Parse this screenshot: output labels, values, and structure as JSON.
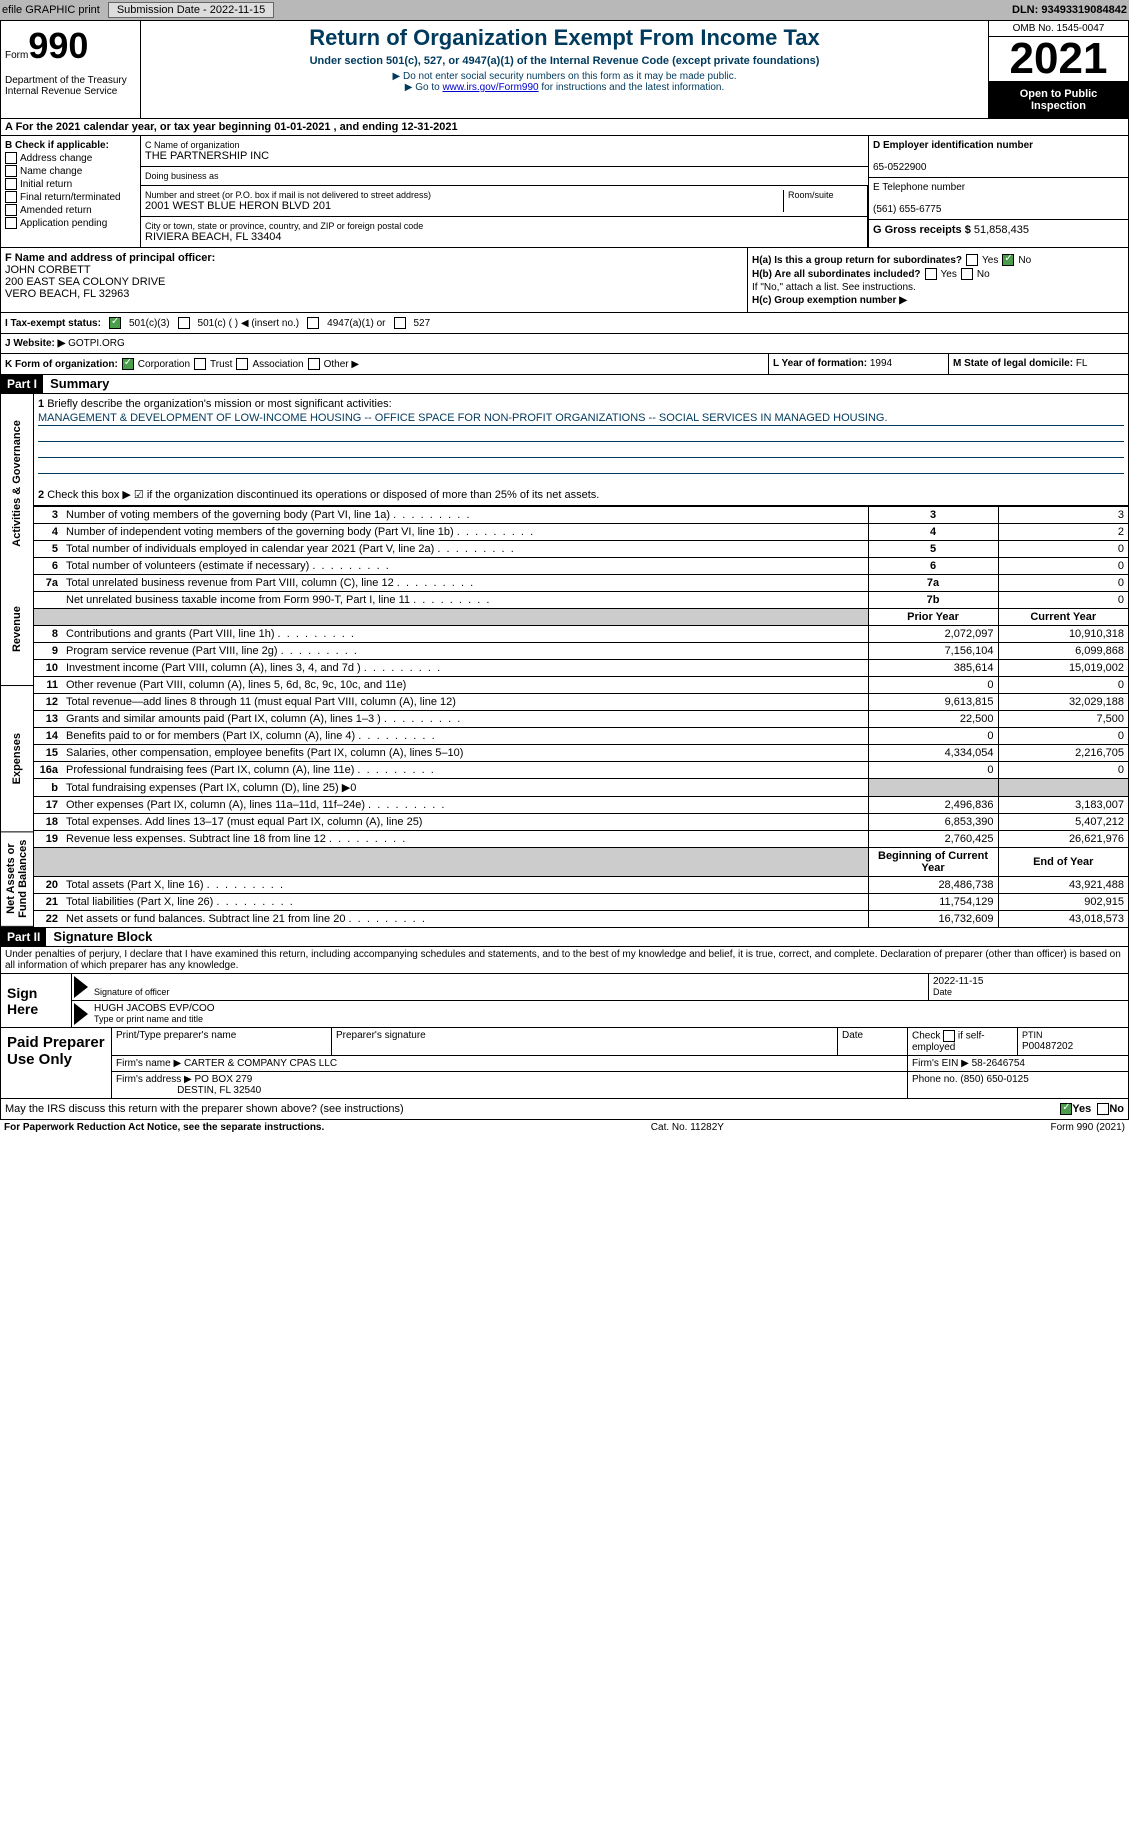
{
  "header": {
    "efile": "efile GRAPHIC print",
    "submission": "Submission Date - 2022-11-15",
    "dln": "DLN: 93493319084842"
  },
  "form": {
    "form_word": "Form",
    "form_num": "990",
    "title": "Return of Organization Exempt From Income Tax",
    "subtitle": "Under section 501(c), 527, or 4947(a)(1) of the Internal Revenue Code (except private foundations)",
    "note1": "▶ Do not enter social security numbers on this form as it may be made public.",
    "note2_pre": "▶ Go to ",
    "note2_link": "www.irs.gov/Form990",
    "note2_post": " for instructions and the latest information.",
    "dept": "Department of the Treasury\nInternal Revenue Service",
    "omb": "OMB No. 1545-0047",
    "year": "2021",
    "inspect": "Open to Public Inspection"
  },
  "a": {
    "text": "A For the 2021 calendar year, or tax year beginning 01-01-2021    , and ending 12-31-2021"
  },
  "b": {
    "label": "B Check if applicable:",
    "items": [
      "Address change",
      "Name change",
      "Initial return",
      "Final return/terminated",
      "Amended return",
      "Application pending"
    ]
  },
  "c": {
    "name_label": "C Name of organization",
    "name": "THE PARTNERSHIP INC",
    "dba_label": "Doing business as",
    "dba": "",
    "street_label": "Number and street (or P.O. box if mail is not delivered to street address)",
    "street": "2001 WEST BLUE HERON BLVD 201",
    "room_label": "Room/suite",
    "city_label": "City or town, state or province, country, and ZIP or foreign postal code",
    "city": "RIVIERA BEACH, FL  33404"
  },
  "d": {
    "label": "D Employer identification number",
    "val": "65-0522900"
  },
  "e": {
    "label": "E Telephone number",
    "val": "(561) 655-6775"
  },
  "g": {
    "label": "G Gross receipts $",
    "val": "51,858,435"
  },
  "f": {
    "label": "F  Name and address of principal officer:",
    "name": "JOHN CORBETT",
    "addr1": "200 EAST SEA COLONY DRIVE",
    "addr2": "VERO BEACH, FL  32963"
  },
  "h": {
    "a_label": "H(a)  Is this a group return for subordinates?",
    "b_label": "H(b)  Are all subordinates included?",
    "b_note": "If \"No,\" attach a list. See instructions.",
    "c_label": "H(c)  Group exemption number ▶",
    "yes": "Yes",
    "no": "No"
  },
  "i": {
    "label": "I   Tax-exempt status:",
    "opts": [
      "501(c)(3)",
      "501(c) (  ) ◀ (insert no.)",
      "4947(a)(1) or",
      "527"
    ]
  },
  "j": {
    "label": "J   Website: ▶",
    "val": "GOTPI.ORG"
  },
  "k": {
    "label": "K Form of organization:",
    "opts": [
      "Corporation",
      "Trust",
      "Association",
      "Other ▶"
    ]
  },
  "l": {
    "label": "L Year of formation:",
    "val": "1994"
  },
  "m": {
    "label": "M State of legal domicile:",
    "val": "FL"
  },
  "part1": {
    "hdr": "Part I",
    "title": "Summary",
    "q1": "Briefly describe the organization's mission or most significant activities:",
    "mission": "MANAGEMENT & DEVELOPMENT OF LOW-INCOME HOUSING -- OFFICE SPACE FOR NON-PROFIT ORGANIZATIONS -- SOCIAL SERVICES IN MANAGED HOUSING.",
    "q2": "Check this box ▶ ☑ if the organization discontinued its operations or disposed of more than 25% of its net assets.",
    "vtabs": [
      "Activities & Governance",
      "Revenue",
      "Expenses",
      "Net Assets or Fund Balances"
    ]
  },
  "lines": {
    "3": {
      "t": "Number of voting members of the governing body (Part VI, line 1a)",
      "box": "3",
      "v": "3"
    },
    "4": {
      "t": "Number of independent voting members of the governing body (Part VI, line 1b)",
      "box": "4",
      "v": "2"
    },
    "5": {
      "t": "Total number of individuals employed in calendar year 2021 (Part V, line 2a)",
      "box": "5",
      "v": "0"
    },
    "6": {
      "t": "Total number of volunteers (estimate if necessary)",
      "box": "6",
      "v": "0"
    },
    "7a": {
      "t": "Total unrelated business revenue from Part VIII, column (C), line 12",
      "box": "7a",
      "v": "0"
    },
    "7b": {
      "t": "Net unrelated business taxable income from Form 990-T, Part I, line 11",
      "box": "7b",
      "v": "0"
    },
    "hdr_prior": "Prior Year",
    "hdr_curr": "Current Year",
    "8": {
      "t": "Contributions and grants (Part VIII, line 1h)",
      "p": "2,072,097",
      "c": "10,910,318"
    },
    "9": {
      "t": "Program service revenue (Part VIII, line 2g)",
      "p": "7,156,104",
      "c": "6,099,868"
    },
    "10": {
      "t": "Investment income (Part VIII, column (A), lines 3, 4, and 7d )",
      "p": "385,614",
      "c": "15,019,002"
    },
    "11": {
      "t": "Other revenue (Part VIII, column (A), lines 5, 6d, 8c, 9c, 10c, and 11e)",
      "p": "0",
      "c": "0"
    },
    "12": {
      "t": "Total revenue—add lines 8 through 11 (must equal Part VIII, column (A), line 12)",
      "p": "9,613,815",
      "c": "32,029,188"
    },
    "13": {
      "t": "Grants and similar amounts paid (Part IX, column (A), lines 1–3 )",
      "p": "22,500",
      "c": "7,500"
    },
    "14": {
      "t": "Benefits paid to or for members (Part IX, column (A), line 4)",
      "p": "0",
      "c": "0"
    },
    "15": {
      "t": "Salaries, other compensation, employee benefits (Part IX, column (A), lines 5–10)",
      "p": "4,334,054",
      "c": "2,216,705"
    },
    "16a": {
      "t": "Professional fundraising fees (Part IX, column (A), line 11e)",
      "p": "0",
      "c": "0"
    },
    "16b": {
      "t": "Total fundraising expenses (Part IX, column (D), line 25) ▶0"
    },
    "17": {
      "t": "Other expenses (Part IX, column (A), lines 11a–11d, 11f–24e)",
      "p": "2,496,836",
      "c": "3,183,007"
    },
    "18": {
      "t": "Total expenses. Add lines 13–17 (must equal Part IX, column (A), line 25)",
      "p": "6,853,390",
      "c": "5,407,212"
    },
    "19": {
      "t": "Revenue less expenses. Subtract line 18 from line 12",
      "p": "2,760,425",
      "c": "26,621,976"
    },
    "hdr_beg": "Beginning of Current Year",
    "hdr_end": "End of Year",
    "20": {
      "t": "Total assets (Part X, line 16)",
      "p": "28,486,738",
      "c": "43,921,488"
    },
    "21": {
      "t": "Total liabilities (Part X, line 26)",
      "p": "11,754,129",
      "c": "902,915"
    },
    "22": {
      "t": "Net assets or fund balances. Subtract line 21 from line 20",
      "p": "16,732,609",
      "c": "43,018,573"
    }
  },
  "part2": {
    "hdr": "Part II",
    "title": "Signature Block",
    "penalty": "Under penalties of perjury, I declare that I have examined this return, including accompanying schedules and statements, and to the best of my knowledge and belief, it is true, correct, and complete. Declaration of preparer (other than officer) is based on all information of which preparer has any knowledge."
  },
  "sign": {
    "label": "Sign Here",
    "sig_label": "Signature of officer",
    "date_label": "Date",
    "date": "2022-11-15",
    "name": "HUGH JACOBS  EVP/COO",
    "name_label": "Type or print name and title"
  },
  "prep": {
    "label": "Paid Preparer Use Only",
    "col1": "Print/Type preparer's name",
    "col2": "Preparer's signature",
    "col3": "Date",
    "col4_pre": "Check",
    "col4_post": "if self-employed",
    "ptin_label": "PTIN",
    "ptin": "P00487202",
    "firm_label": "Firm's name    ▶",
    "firm": "CARTER & COMPANY CPAS LLC",
    "ein_label": "Firm's EIN ▶",
    "ein": "58-2646754",
    "addr_label": "Firm's address ▶",
    "addr1": "PO BOX 279",
    "addr2": "DESTIN, FL  32540",
    "phone_label": "Phone no.",
    "phone": "(850) 650-0125"
  },
  "discuss": {
    "text": "May the IRS discuss this return with the preparer shown above? (see instructions)",
    "yes": "Yes",
    "no": "No"
  },
  "footer": {
    "left": "For Paperwork Reduction Act Notice, see the separate instructions.",
    "mid": "Cat. No. 11282Y",
    "right": "Form 990 (2021)"
  }
}
